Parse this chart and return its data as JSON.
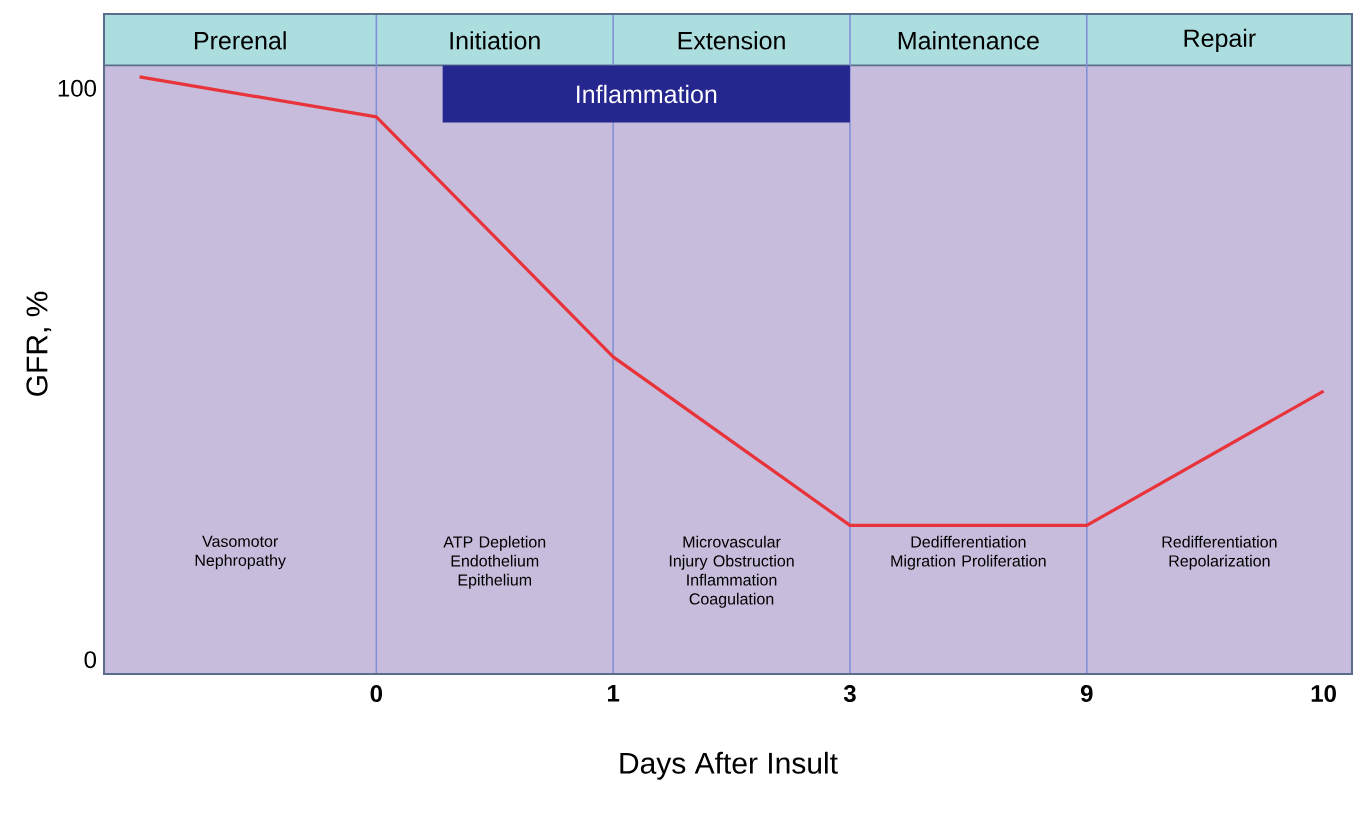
{
  "chart_data": {
    "type": "line",
    "xlabel": "Days After Insult",
    "ylabel": "GFR, %",
    "categories": [
      null,
      "0",
      "1",
      "3",
      "9",
      "10"
    ],
    "series": [
      {
        "color": "#e8333a",
        "values": [
          102,
          95,
          53,
          23.5,
          23.5,
          47
        ]
      }
    ],
    "ylim": [
      -2.5,
      113
    ],
    "yticks": [
      0,
      100
    ],
    "marker": "none",
    "line_style": "solid",
    "grid": false,
    "ref_lines": [
      {
        "axis": "x",
        "value": "0",
        "color": "#8291d7"
      },
      {
        "axis": "x",
        "value": "1",
        "color": "#8291d7"
      },
      {
        "axis": "x",
        "value": "3",
        "color": "#8291d7"
      },
      {
        "axis": "x",
        "value": "9",
        "color": "#8291d7"
      }
    ],
    "bands": [
      {
        "axis": "y",
        "from": 104,
        "to": 113,
        "color": "#acdee0"
      },
      {
        "axis": "y",
        "from": 94,
        "to": 104,
        "label": "Inflammation",
        "color": "#26268f"
      }
    ],
    "annotations": [
      "Prerenal",
      "Initiation",
      "Extension",
      "Maintenance",
      "Repair",
      "Vasomotor Nephropathy",
      "ATP Depletion Endothelium Epithelium",
      "Microvascular Injury Obstruction Inflammation Coagulation",
      "Dedifferentiation Migration Proliferation",
      "Redifferentiation Repolarization"
    ]
  }
}
